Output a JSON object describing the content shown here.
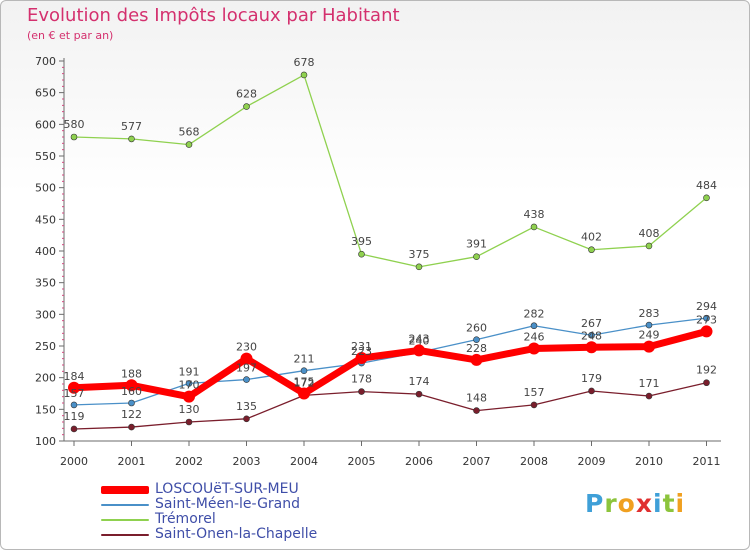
{
  "chart_data": {
    "type": "line",
    "title": "Evolution des Impôts locaux par Habitant",
    "subtitle": "(en € et par an)",
    "x": [
      "2000",
      "2001",
      "2002",
      "2003",
      "2004",
      "2005",
      "2006",
      "2007",
      "2008",
      "2009",
      "2010",
      "2011"
    ],
    "ylim": [
      100,
      700
    ],
    "yticks": [
      "100",
      "150",
      "200",
      "250",
      "300",
      "350",
      "400",
      "450",
      "500",
      "550",
      "600",
      "650",
      "700"
    ],
    "grid": false,
    "legend_position": "bottom-left",
    "series": [
      {
        "name": "LOSCOUëT-SUR-MEU",
        "color": "#ff0000",
        "values": [
          184,
          188,
          170,
          230,
          175,
          231,
          243,
          228,
          246,
          248,
          249,
          273
        ]
      },
      {
        "name": "Saint-Méen-le-Grand",
        "color": "#4a90c8",
        "values": [
          157,
          160,
          191,
          197,
          211,
          223,
          240,
          260,
          282,
          267,
          283,
          294
        ]
      },
      {
        "name": "Trémorel",
        "color": "#8fd14f",
        "values": [
          580,
          577,
          568,
          628,
          678,
          395,
          375,
          391,
          438,
          402,
          408,
          484
        ]
      },
      {
        "name": "Saint-Onen-la-Chapelle",
        "color": "#7a1e2c",
        "values": [
          119,
          122,
          130,
          135,
          172,
          178,
          174,
          148,
          157,
          179,
          171,
          192
        ]
      }
    ]
  },
  "brand": {
    "letters": [
      "P",
      "r",
      "o",
      "x",
      "i",
      "t",
      "i"
    ],
    "colors": [
      "#3fa0d8",
      "#8cc43c",
      "#f0a020",
      "#e03030",
      "#3fa0d8",
      "#8cc43c",
      "#f0a020"
    ]
  }
}
